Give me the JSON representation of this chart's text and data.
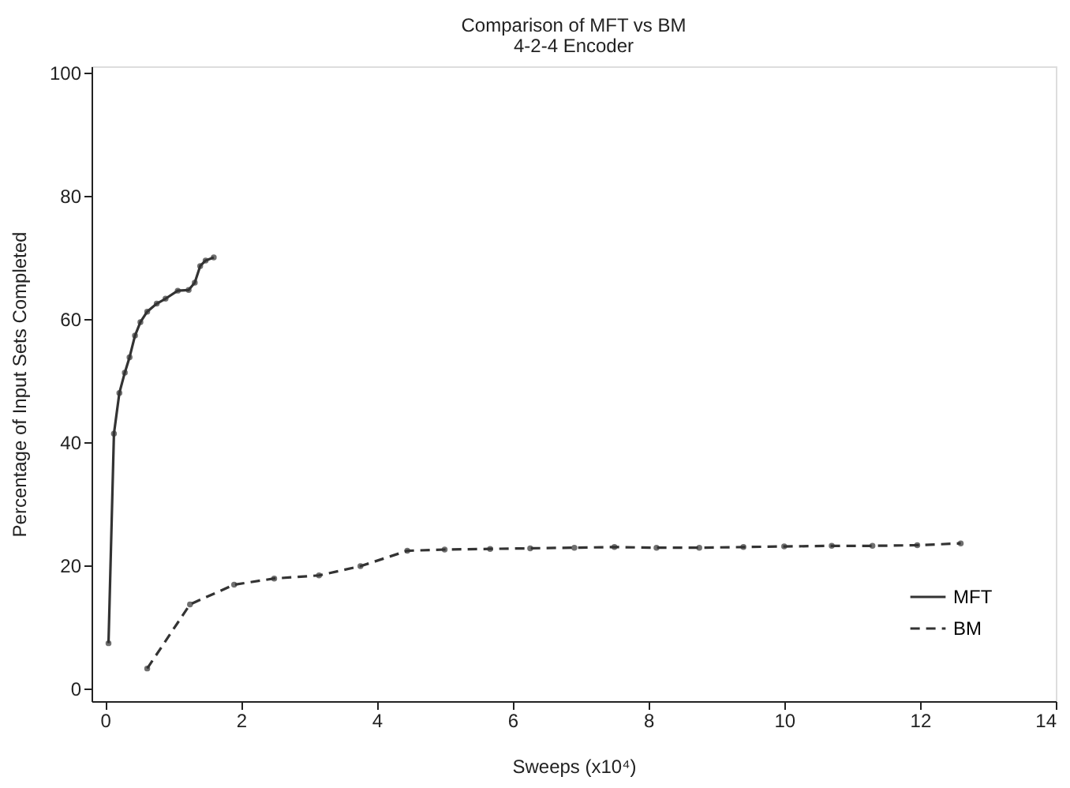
{
  "chart_data": {
    "type": "line",
    "title": "Comparison of MFT vs BM",
    "subtitle": "4-2-4 Encoder",
    "xlabel": "Sweeps (x10⁴)",
    "ylabel": "Percentage of Input Sets Completed",
    "xlim": [
      -0.2,
      14
    ],
    "xticks": [
      0,
      2,
      4,
      6,
      8,
      10,
      12,
      14
    ],
    "ylim": [
      -2,
      101
    ],
    "yticks": [
      0,
      20,
      40,
      60,
      80,
      100
    ],
    "grid": false,
    "legend": "bottom right",
    "marker": "circle",
    "series": [
      {
        "name": "MFT",
        "color": "#333333",
        "line_style": "solid",
        "x": [
          0.05,
          0.13,
          0.21,
          0.29,
          0.36,
          0.44,
          0.52,
          0.62,
          0.76,
          0.89,
          1.07,
          1.23,
          1.32,
          1.4,
          1.48,
          1.6
        ],
        "values": [
          7.4,
          41.4,
          48,
          51.3,
          53.8,
          57.3,
          59.5,
          61.2,
          62.5,
          63.3,
          64.6,
          64.7,
          65.9,
          68.6,
          69.5,
          70
        ]
      },
      {
        "name": "BM",
        "color": "#333333",
        "line_style": "dashed",
        "x": [
          0.62,
          1.25,
          1.9,
          2.49,
          3.15,
          3.76,
          4.45,
          5.0,
          5.67,
          6.26,
          6.91,
          7.5,
          8.12,
          8.75,
          9.4,
          10.0,
          10.7,
          11.3,
          11.96,
          12.6
        ],
        "values": [
          3.3,
          13.7,
          16.9,
          17.9,
          18.4,
          19.9,
          22.4,
          22.6,
          22.7,
          22.8,
          22.9,
          23,
          22.9,
          22.9,
          23,
          23.1,
          23.2,
          23.2,
          23.3,
          23.6
        ]
      }
    ]
  }
}
